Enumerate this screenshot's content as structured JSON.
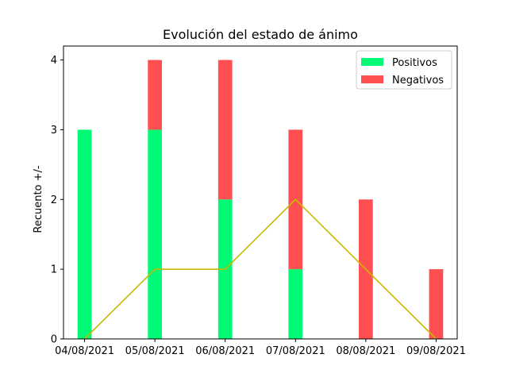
{
  "chart_data": {
    "type": "bar",
    "title": "Evolución del estado de ánimo",
    "xlabel": "",
    "ylabel": "Recuento +/-",
    "categories": [
      "04/08/2021",
      "05/08/2021",
      "06/08/2021",
      "07/08/2021",
      "08/08/2021",
      "09/08/2021"
    ],
    "series": [
      {
        "name": "Positivos",
        "values": [
          3,
          3,
          2,
          1,
          0,
          0
        ],
        "color": "#00fa76"
      },
      {
        "name": "Negativos",
        "values": [
          0,
          1,
          2,
          2,
          2,
          1
        ],
        "color": "#ff4f50"
      }
    ],
    "line": {
      "values": [
        0,
        1,
        1,
        2,
        1,
        0
      ],
      "color": "#c8b900"
    },
    "stacked": true,
    "ylim": [
      0,
      4.2
    ],
    "yticks": [
      0,
      1,
      2,
      3,
      4
    ],
    "grid": false,
    "legend_position": "top-right"
  }
}
